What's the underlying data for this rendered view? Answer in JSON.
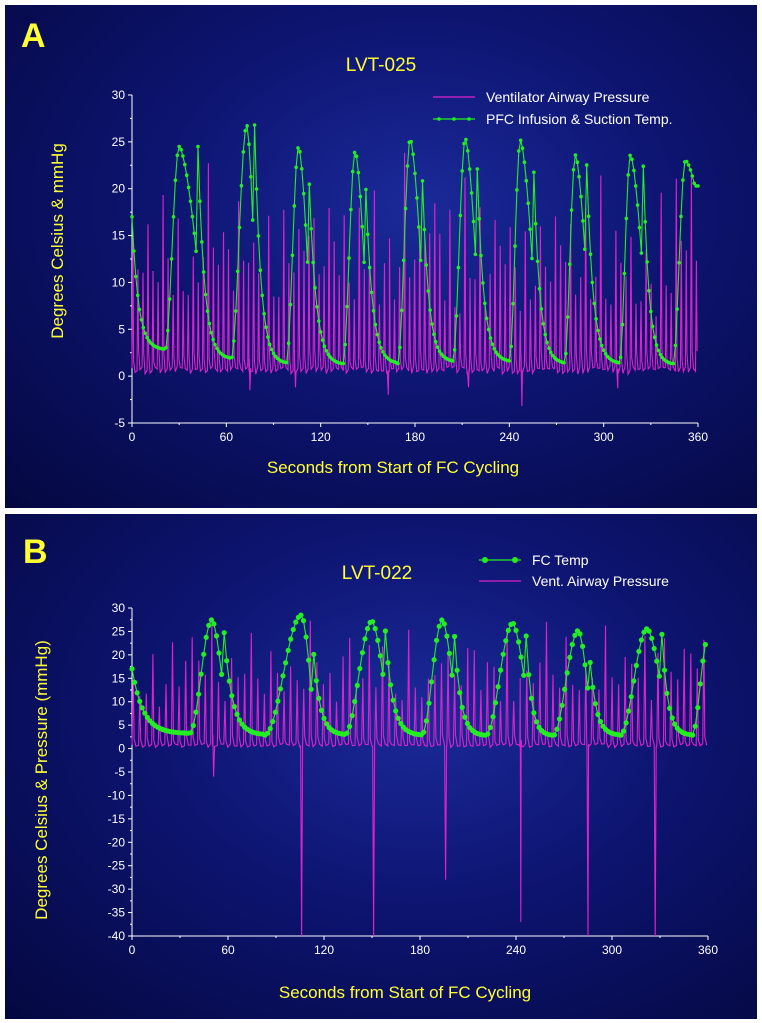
{
  "colors": {
    "temperature": "#22ee22",
    "pressure": "#dd22cc",
    "label": "#ffff33",
    "background": "#0d1470"
  },
  "chart_data": [
    {
      "type": "line",
      "panel_label": "A",
      "title": "LVT-025",
      "xlabel": "Seconds from Start of FC Cycling",
      "ylabel": "Degrees Celsius & mmHg",
      "xlim": [
        0,
        360
      ],
      "ylim": [
        -5,
        30
      ],
      "xticks": [
        0,
        60,
        120,
        180,
        240,
        300,
        360
      ],
      "yticks": [
        -5,
        0,
        5,
        10,
        15,
        20,
        25,
        30
      ],
      "grid": false,
      "legend_position": "top-right",
      "cycle_period": 35.5,
      "series": [
        {
          "name": "Ventilator Airway Pressure",
          "kind": "pressure",
          "color": "#dd22cc",
          "baseline": 0.5,
          "breath_period": 3.2,
          "peaks": [
            16,
            20,
            22,
            17,
            19,
            18,
            21,
            20,
            19,
            21,
            18,
            17,
            16
          ],
          "negative_dips": [
            [
              75,
              -1.5
            ],
            [
              104,
              -1.2
            ],
            [
              163,
              -2.0
            ],
            [
              214,
              -1.2
            ],
            [
              248,
              -3.2
            ],
            [
              309,
              -1.3
            ]
          ]
        },
        {
          "name": "PFC Infusion & Suction Temp.",
          "kind": "temperature",
          "color": "#22ee22",
          "marker": "dot",
          "cycles": [
            {
              "start": 0,
              "rise_start": 21,
              "peak_time": 30,
              "peak": 24.5,
              "trough": 2.8
            },
            {
              "start": 42,
              "rise_start": 63,
              "peak_time": 73,
              "peak": 26.8,
              "trough": 1.8
            },
            {
              "start": 78,
              "rise_start": 98,
              "peak_time": 106,
              "peak": 24.5,
              "trough": 1.3
            },
            {
              "start": 112,
              "rise_start": 134,
              "peak_time": 142,
              "peak": 24.0,
              "trough": 1.2
            },
            {
              "start": 148,
              "rise_start": 169,
              "peak_time": 177,
              "peak": 25.3,
              "trough": 1.3
            },
            {
              "start": 184,
              "rise_start": 204,
              "peak_time": 212,
              "peak": 25.4,
              "trough": 1.5
            },
            {
              "start": 219,
              "rise_start": 240,
              "peak_time": 247,
              "peak": 25.2,
              "trough": 1.5
            },
            {
              "start": 255,
              "rise_start": 275,
              "peak_time": 282,
              "peak": 23.6,
              "trough": 1.3
            },
            {
              "start": 289,
              "rise_start": 310,
              "peak_time": 317,
              "peak": 23.6,
              "trough": 1.3
            },
            {
              "start": 325,
              "rise_start": 344,
              "peak_time": 352,
              "peak": 23.0,
              "trough": 1.2
            }
          ]
        }
      ]
    },
    {
      "type": "line",
      "panel_label": "B",
      "title": "LVT-022",
      "xlabel": "Seconds from Start of FC Cycling",
      "ylabel": "Degrees Celsius & Pressure (mmHg)",
      "xlim": [
        0,
        360
      ],
      "ylim": [
        -40,
        30
      ],
      "xticks": [
        0,
        60,
        120,
        180,
        240,
        300,
        360
      ],
      "yticks": [
        -40,
        -35,
        -30,
        -25,
        -20,
        -15,
        -10,
        -5,
        0,
        5,
        10,
        15,
        20,
        25,
        30
      ],
      "grid": false,
      "legend_position": "top-right",
      "series": [
        {
          "name": "FC Temp",
          "kind": "temperature",
          "color": "#22ee22",
          "marker": "dot",
          "cycles": [
            {
              "start": 0,
              "rise_start": 36,
              "peak_time": 50,
              "peak": 27.5,
              "trough": 3.2
            },
            {
              "start": 57,
              "rise_start": 83,
              "peak_time": 106,
              "peak": 28.5,
              "trough": 2.9
            },
            {
              "start": 112,
              "rise_start": 133,
              "peak_time": 150,
              "peak": 27.2,
              "trough": 2.9
            },
            {
              "start": 158,
              "rise_start": 181,
              "peak_time": 194,
              "peak": 27.5,
              "trough": 2.8
            },
            {
              "start": 201,
              "rise_start": 221,
              "peak_time": 238,
              "peak": 26.8,
              "trough": 2.7
            },
            {
              "start": 246,
              "rise_start": 263,
              "peak_time": 279,
              "peak": 25.2,
              "trough": 2.7
            },
            {
              "start": 285,
              "rise_start": 305,
              "peak_time": 322,
              "peak": 25.6,
              "trough": 2.8
            },
            {
              "start": 331,
              "rise_start": 350,
              "peak_time": 360,
              "peak": 23.5,
              "trough": 2.8
            }
          ]
        },
        {
          "name": "Vent. Airway Pressure",
          "kind": "pressure",
          "color": "#dd22cc",
          "baseline": 0.5,
          "breath_period": 4.1,
          "peaks": [
            18,
            24,
            28,
            25,
            22,
            27,
            24,
            26,
            29,
            22,
            25,
            23,
            27,
            26,
            24
          ],
          "negative_dips": [
            [
              51,
              -6
            ],
            [
              106,
              -40
            ],
            [
              151,
              -40
            ],
            [
              196,
              -28
            ],
            [
              243,
              -37
            ],
            [
              285,
              -40
            ],
            [
              327,
              -40
            ]
          ]
        }
      ]
    }
  ]
}
